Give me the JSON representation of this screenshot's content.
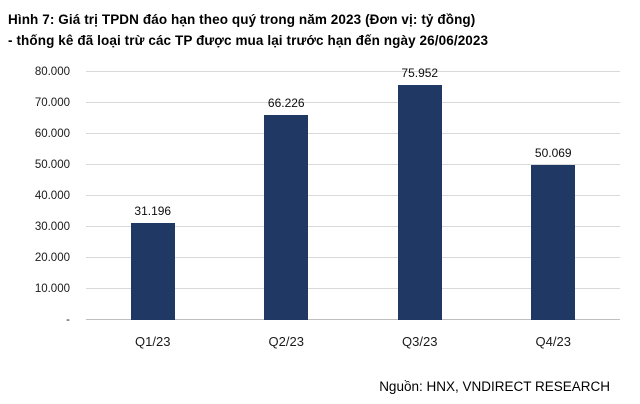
{
  "header": {
    "line1": "Hình 7: Giá trị TPDN đáo hạn theo quý trong năm 2023 (Đơn vị: tỷ đồng)",
    "line2": "- thống kê đã loại trừ các TP được mua lại trước hạn đến ngày 26/06/2023"
  },
  "footer": {
    "source": "Nguồn: HNX, VNDIRECT RESEARCH"
  },
  "chart_data": {
    "type": "bar",
    "title": "Giá trị TPDN đáo hạn theo quý trong năm 2023 (tỷ đồng)",
    "categories": [
      "Q1/23",
      "Q2/23",
      "Q3/23",
      "Q4/23"
    ],
    "values": [
      31196,
      66226,
      75952,
      50069
    ],
    "value_labels": [
      "31.196",
      "66.226",
      "75.952",
      "50.069"
    ],
    "xlabel": "",
    "ylabel": "",
    "ylim": [
      0,
      80000
    ],
    "ytick_step": 10000,
    "ytick_labels": [
      "-",
      "10.000",
      "20.000",
      "30.000",
      "40.000",
      "50.000",
      "60.000",
      "70.000",
      "80.000"
    ],
    "bar_color": "#1F3864",
    "grid": true,
    "legend": "none"
  }
}
